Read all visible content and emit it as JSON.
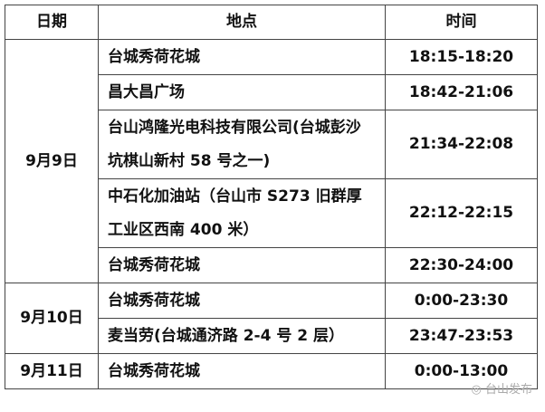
{
  "headers": [
    "日期",
    "地点",
    "时间"
  ],
  "groups": [
    {
      "date": "9月9日",
      "rows": [
        {
          "place": "台城秀荷花城",
          "time": "18:15-18:20"
        },
        {
          "place": "昌大昌广场",
          "time": "18:42-21:06"
        },
        {
          "place": "台山鸿隆光电科技有限公司(台城彭沙坑棋山新村 58 号之一)",
          "time": "21:34-22:08"
        },
        {
          "place": "中石化加油站（台山市 S273 旧群厚工业区西南 400 米）",
          "time": "22:12-22:15"
        },
        {
          "place": "台城秀荷花城",
          "time": "22:30-24:00"
        }
      ]
    },
    {
      "date": "9月10日",
      "rows": [
        {
          "place": "台城秀荷花城",
          "time": "0:00-23:30"
        },
        {
          "place": "麦当劳(台城通济路 2-4 号 2 层）",
          "time": "23:47-23:53"
        }
      ]
    },
    {
      "date": "9月11日",
      "rows": [
        {
          "place": "台城秀荷花城",
          "time": "0:00-13:00"
        }
      ]
    }
  ],
  "watermark": "台山发布"
}
